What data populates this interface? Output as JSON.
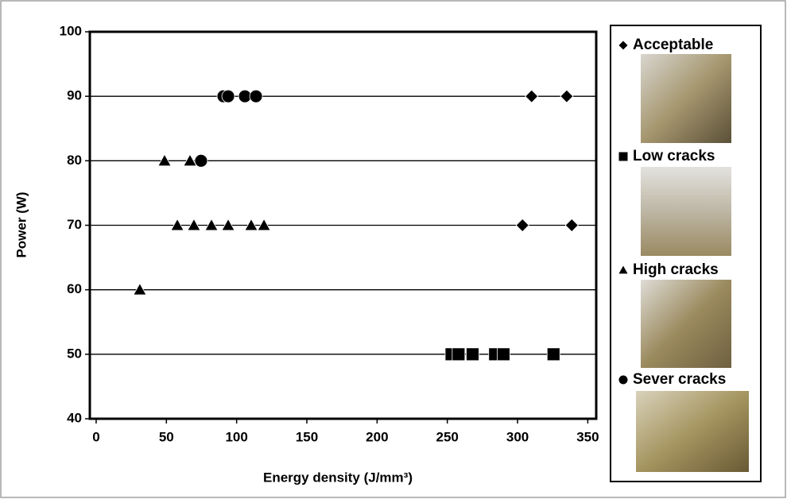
{
  "chart_data": {
    "type": "scatter",
    "xlabel": "Energy density (J/mm³)",
    "ylabel": "Power (W)",
    "xlim": [
      -4.5,
      356
    ],
    "ylim": [
      40,
      100
    ],
    "xticks": [
      0,
      50,
      100,
      150,
      200,
      250,
      300,
      350
    ],
    "yticks": [
      40,
      50,
      60,
      70,
      80,
      90,
      100
    ],
    "grid": true,
    "series": [
      {
        "name": "Acceptable",
        "marker": "diamond",
        "color": "#000000",
        "x": [
          310,
          335,
          303.5,
          338.6
        ],
        "y": [
          90,
          90,
          70,
          70
        ]
      },
      {
        "name": "Low cracks",
        "marker": "square",
        "color": "#000000",
        "x": [
          253,
          258,
          268,
          284,
          290,
          325.6
        ],
        "y": [
          50,
          50,
          50,
          50,
          50,
          50
        ]
      },
      {
        "name": "High cracks",
        "marker": "triangle",
        "color": "#000000",
        "x": [
          48.7,
          66.8,
          57.8,
          69.6,
          82.1,
          94,
          110.4,
          119.5,
          31.1
        ],
        "y": [
          80,
          80,
          70,
          70,
          70,
          70,
          70,
          70,
          60
        ]
      },
      {
        "name": "Sever cracks",
        "marker": "circle",
        "color": "#000000",
        "x": [
          90.6,
          94,
          105.9,
          113.8,
          74.7
        ],
        "y": [
          90,
          90,
          90,
          90,
          80
        ]
      }
    ]
  }
}
